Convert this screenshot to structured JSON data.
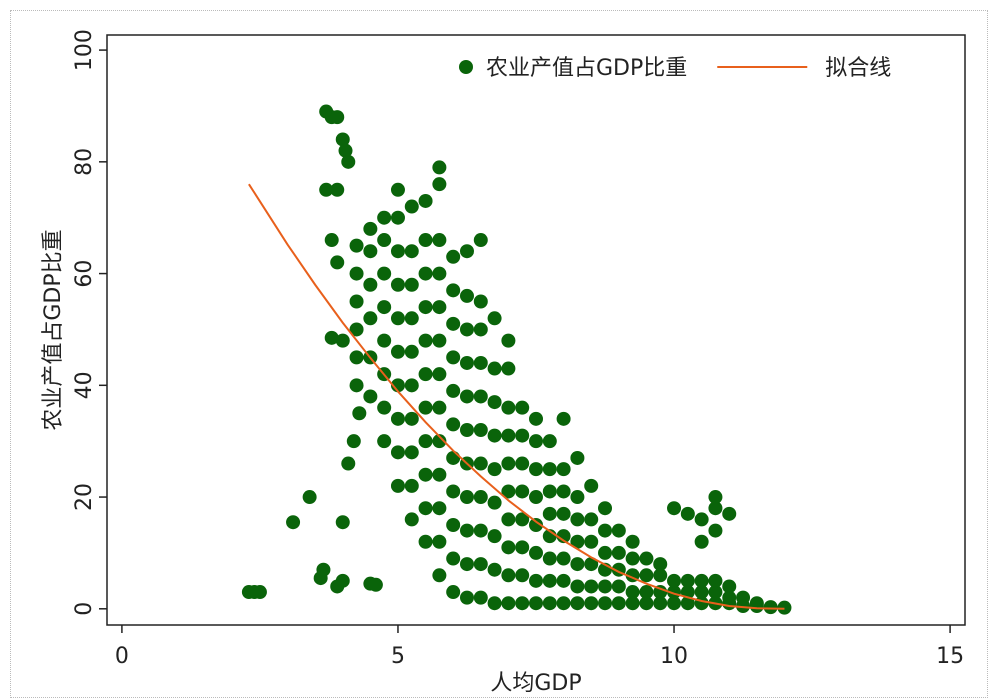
{
  "chart_data": {
    "type": "scatter",
    "x_label": "人均GDP",
    "y_label": "农业产值占GDP比重",
    "xlim": [
      -0.27,
      15.27
    ],
    "ylim": [
      -2.9,
      102.7
    ],
    "xticks": [
      0,
      5,
      10,
      15
    ],
    "yticks": [
      0,
      20,
      40,
      60,
      80,
      100
    ],
    "grid": false,
    "legend": "top-right",
    "series": [
      {
        "name": "农业产值占GDP比重",
        "kind": "scatter",
        "color": "#0a640a",
        "x": [
          2.3,
          2.4,
          2.5,
          3.1,
          3.4,
          3.6,
          3.65,
          3.9,
          4.0,
          4.5,
          4.6,
          4.0,
          3.7,
          3.9,
          3.7,
          3.8,
          3.9,
          4.0,
          4.05,
          4.1,
          3.8,
          3.9,
          3.8,
          4.0,
          4.1,
          4.2,
          4.3,
          4.25,
          4.25,
          4.25,
          4.25,
          4.25,
          4.25,
          4.5,
          4.5,
          4.5,
          4.5,
          4.5,
          4.5,
          4.75,
          4.75,
          4.75,
          4.75,
          4.75,
          4.75,
          4.75,
          4.75,
          5.0,
          5.0,
          5.0,
          5.0,
          5.0,
          5.0,
          5.0,
          5.0,
          5.0,
          5.0,
          5.25,
          5.25,
          5.25,
          5.25,
          5.25,
          5.25,
          5.25,
          5.25,
          5.25,
          5.25,
          5.5,
          5.5,
          5.5,
          5.5,
          5.5,
          5.5,
          5.5,
          5.5,
          5.5,
          5.5,
          5.5,
          5.75,
          5.75,
          5.75,
          5.75,
          5.75,
          5.75,
          5.75,
          5.75,
          5.75,
          5.75,
          5.75,
          5.75,
          5.75,
          6.0,
          6.0,
          6.0,
          6.0,
          6.0,
          6.0,
          6.0,
          6.0,
          6.0,
          6.0,
          6.0,
          6.25,
          6.25,
          6.25,
          6.25,
          6.25,
          6.25,
          6.25,
          6.25,
          6.25,
          6.25,
          6.25,
          6.5,
          6.5,
          6.5,
          6.5,
          6.5,
          6.5,
          6.5,
          6.5,
          6.5,
          6.5,
          6.5,
          6.75,
          6.75,
          6.75,
          6.75,
          6.75,
          6.75,
          6.75,
          6.75,
          6.75,
          7.0,
          7.0,
          7.0,
          7.0,
          7.0,
          7.0,
          7.0,
          7.0,
          7.0,
          7.0,
          7.25,
          7.25,
          7.25,
          7.25,
          7.25,
          7.25,
          7.25,
          7.25,
          7.5,
          7.5,
          7.5,
          7.5,
          7.5,
          7.5,
          7.5,
          7.5,
          7.75,
          7.75,
          7.75,
          7.75,
          7.75,
          7.75,
          7.75,
          7.75,
          8.0,
          8.0,
          8.0,
          8.0,
          8.0,
          8.0,
          8.0,
          8.0,
          8.25,
          8.25,
          8.25,
          8.25,
          8.25,
          8.25,
          8.25,
          8.5,
          8.5,
          8.5,
          8.5,
          8.5,
          8.5,
          8.75,
          8.75,
          8.75,
          8.75,
          8.75,
          8.75,
          9.0,
          9.0,
          9.0,
          9.0,
          9.0,
          9.25,
          9.25,
          9.25,
          9.25,
          9.25,
          9.5,
          9.5,
          9.5,
          9.5,
          9.75,
          9.75,
          9.75,
          9.75,
          10.0,
          10.0,
          10.0,
          10.0,
          10.25,
          10.25,
          10.25,
          10.25,
          10.5,
          10.5,
          10.5,
          10.5,
          10.5,
          10.75,
          10.75,
          10.75,
          10.75,
          10.75,
          10.75,
          11.0,
          11.0,
          11.0,
          11.0,
          11.25,
          11.25,
          11.5,
          11.5,
          11.75,
          12.0
        ],
        "values": [
          3,
          3,
          3,
          15.5,
          20,
          5.5,
          7,
          4,
          5,
          4.5,
          4.3,
          15.5,
          75,
          75,
          89,
          88,
          88,
          84,
          82,
          80,
          66,
          62,
          48.5,
          48,
          26,
          30,
          35,
          40,
          45,
          50,
          55,
          60,
          65,
          38,
          45,
          52,
          58,
          64,
          68,
          30,
          36,
          42,
          48,
          54,
          60,
          66,
          70,
          22,
          28,
          34,
          40,
          46,
          52,
          58,
          64,
          70,
          75,
          16,
          22,
          28,
          34,
          40,
          46,
          52,
          58,
          64,
          72,
          12,
          18,
          24,
          30,
          36,
          42,
          48,
          54,
          60,
          66,
          73,
          6,
          12,
          18,
          24,
          30,
          36,
          42,
          48,
          54,
          60,
          66,
          76,
          79,
          3,
          9,
          15,
          21,
          27,
          33,
          39,
          45,
          51,
          57,
          63,
          2,
          8,
          14,
          20,
          26,
          32,
          38,
          44,
          50,
          56,
          64,
          2,
          8,
          14,
          20,
          26,
          32,
          38,
          44,
          50,
          55,
          66,
          1,
          7,
          13,
          19,
          25,
          31,
          37,
          43,
          52,
          1,
          6,
          11,
          16,
          21,
          26,
          31,
          36,
          43,
          48,
          1,
          6,
          11,
          16,
          21,
          26,
          31,
          36,
          1,
          5,
          10,
          15,
          20,
          25,
          30,
          34,
          1,
          5,
          9,
          13,
          17,
          21,
          25,
          30,
          1,
          5,
          9,
          13,
          17,
          21,
          25,
          34,
          1,
          4,
          8,
          12,
          16,
          20,
          27,
          1,
          4,
          8,
          12,
          16,
          22,
          1,
          4,
          7,
          10,
          14,
          18,
          1,
          4,
          7,
          10,
          14,
          1,
          3,
          6,
          9,
          12,
          1,
          3,
          6,
          9,
          1,
          3,
          6,
          8,
          1,
          3,
          5,
          18,
          1,
          3,
          5,
          17,
          1,
          3,
          5,
          12,
          16,
          1,
          3,
          5,
          14,
          18,
          20,
          1,
          2,
          4,
          17,
          0.5,
          2,
          0.5,
          1,
          0.3,
          0.2
        ]
      },
      {
        "name": "拟合线",
        "kind": "line",
        "color": "#e8601c",
        "x": [
          2.3,
          3,
          3.5,
          4,
          4.5,
          5,
          5.5,
          6,
          6.5,
          7,
          7.5,
          8,
          8.5,
          9,
          9.5,
          10,
          10.5,
          11,
          11.5,
          12
        ],
        "values": [
          76.0,
          65.2,
          58.0,
          51.2,
          44.9,
          38.9,
          33.4,
          28.3,
          23.7,
          19.4,
          15.6,
          12.2,
          9.2,
          6.6,
          4.5,
          2.7,
          1.4,
          0.5,
          0.1,
          0.0
        ]
      }
    ]
  }
}
